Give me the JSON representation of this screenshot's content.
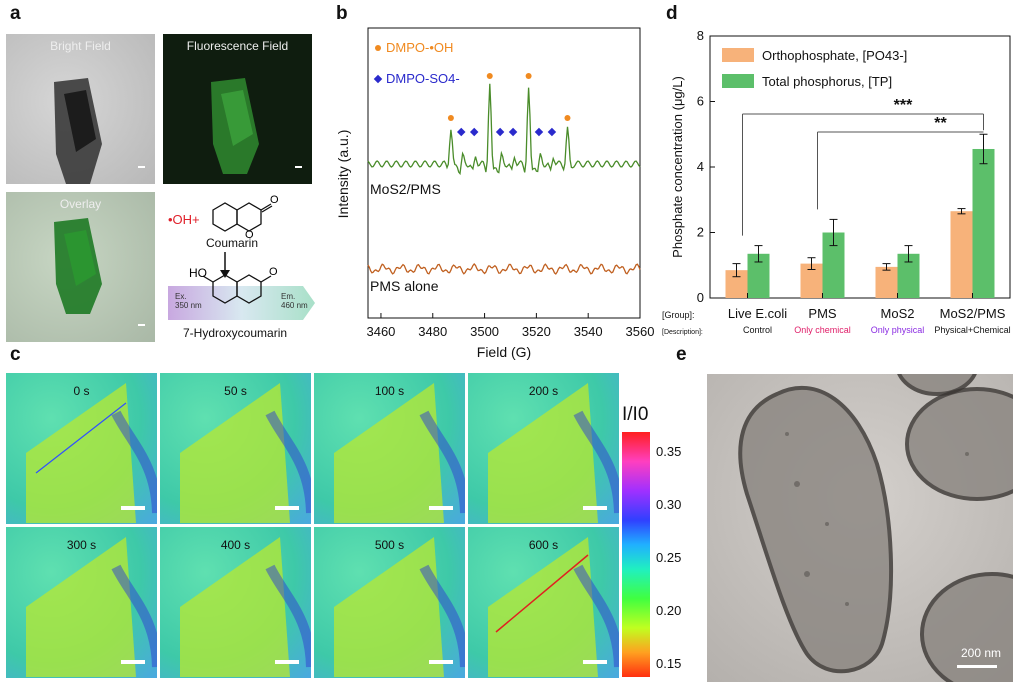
{
  "panels": {
    "a": {
      "label": "a",
      "bright_field": "Bright Field",
      "fluorescence_field": "Fluorescence Field",
      "overlay": "Overlay",
      "reaction": {
        "oh": "•OH+",
        "coumarin": "Coumarin",
        "product": "7-Hydroxycoumarin",
        "ex": "Ex.",
        "ex_nm": "350 nm",
        "em": "Em.",
        "em_nm": "460 nm",
        "ho": "HO",
        "o_carbonyl": "O",
        "o_ring": "O"
      }
    },
    "b": {
      "label": "b",
      "legend_oh": "DMPO-•OH",
      "legend_so4": "DMPO-SO4-",
      "trace_top": "MoS2/PMS",
      "trace_bottom": "PMS alone",
      "ylabel": "Intensity (a.u.)",
      "xlabel": "Field (G)",
      "xticks": [
        "3460",
        "3480",
        "3500",
        "3520",
        "3540",
        "3560"
      ]
    },
    "c": {
      "label": "c",
      "times": [
        "0 s",
        "50 s",
        "100 s",
        "200 s",
        "300 s",
        "400 s",
        "500 s",
        "600 s"
      ],
      "colorbar_title": "I/I0",
      "colorbar_ticks": [
        "0.35",
        "0.30",
        "0.25",
        "0.20",
        "0.15"
      ]
    },
    "e": {
      "label": "e",
      "scalebar": "200 nm"
    }
  },
  "chart_data": {
    "type": "bar",
    "label": "d",
    "ylabel": "Phosphate concentration (μg/L)",
    "ylim": [
      0,
      8
    ],
    "yticks": [
      "0",
      "2",
      "4",
      "6",
      "8"
    ],
    "group_row_label": "[Group]:",
    "description_row_label": "[Description]:",
    "categories": [
      "Live E.coli",
      "PMS",
      "MoS2",
      "MoS2/PMS"
    ],
    "descriptions": [
      "Control",
      "Only chemical",
      "Only physical",
      "Physical+Chemical"
    ],
    "description_colors": [
      "#111111",
      "#e0206a",
      "#8a2be2",
      "#111111"
    ],
    "series": [
      {
        "name": "Orthophosphate, [PO43-]",
        "values": [
          0.85,
          1.05,
          0.95,
          2.65
        ],
        "errors": [
          0.2,
          0.18,
          0.1,
          0.08
        ],
        "color": "#f7b27a"
      },
      {
        "name": "Total phosphorus, [TP]",
        "values": [
          1.35,
          2.0,
          1.35,
          4.55
        ],
        "errors": [
          0.25,
          0.4,
          0.25,
          0.45
        ],
        "color": "#5cbf6a"
      }
    ],
    "significance": [
      "***",
      "**"
    ],
    "legend": "top-left"
  }
}
